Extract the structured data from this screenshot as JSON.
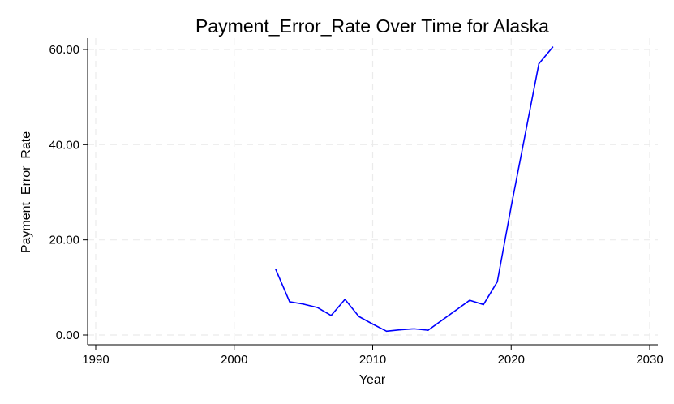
{
  "chart_data": {
    "type": "line",
    "title": "Payment_Error_Rate Over Time for Alaska",
    "xlabel": "Year",
    "ylabel": "Payment_Error_Rate",
    "xlim": [
      1990,
      2030
    ],
    "ylim": [
      0,
      60
    ],
    "x_ticks": [
      1990,
      2000,
      2010,
      2020,
      2030
    ],
    "y_ticks": [
      0,
      20,
      40,
      60
    ],
    "y_tick_labels": [
      "0.00",
      "20.00",
      "40.00",
      "60.00"
    ],
    "grid": true,
    "legend": "none",
    "series": [
      {
        "color": "#0000ff",
        "x": [
          2003,
          2004,
          2005,
          2006,
          2007,
          2008,
          2009,
          2010,
          2011,
          2012,
          2013,
          2014,
          2015,
          2016,
          2017,
          2018,
          2019,
          2020,
          2021,
          2022,
          2023
        ],
        "y": [
          13.8,
          7.0,
          6.5,
          5.8,
          4.1,
          7.5,
          3.9,
          2.3,
          0.8,
          1.1,
          1.3,
          1.0,
          3.1,
          5.2,
          7.3,
          6.4,
          11.2,
          27.0,
          42.0,
          57.0,
          60.5
        ]
      }
    ]
  }
}
